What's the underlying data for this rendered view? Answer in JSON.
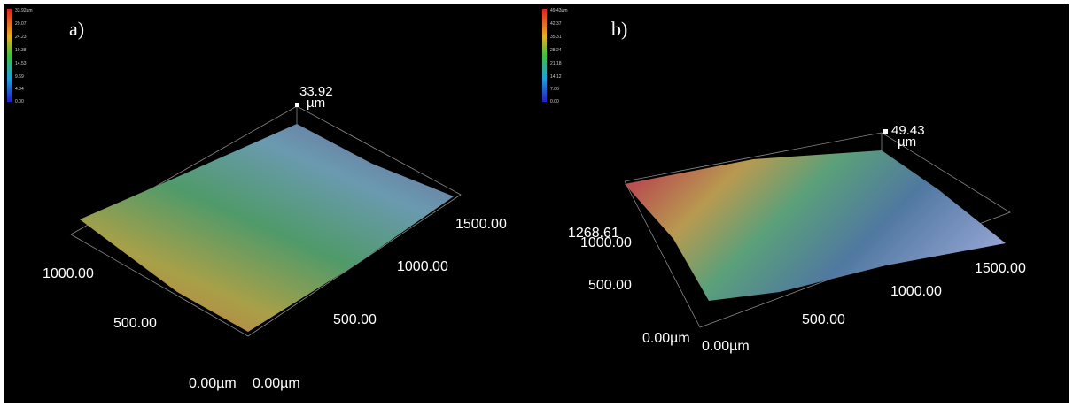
{
  "panels": [
    {
      "label": "a)",
      "colorbar": [
        "33.92µm",
        "29.07",
        "24.23",
        "19.38",
        "14.53",
        "9.69",
        "4.84",
        "0.00"
      ],
      "z_max": "33.92",
      "z_unit": "µm",
      "axis_labels": [
        "1500.00",
        "1000.00",
        "500.00",
        "0.00µm",
        "1000.00",
        "500.00",
        "0.00µm"
      ]
    },
    {
      "label": "b)",
      "colorbar": [
        "49.43µm",
        "42.37",
        "35.31",
        "28.24",
        "21.18",
        "14.12",
        "7.06",
        "0.00"
      ],
      "z_max": "49.43",
      "z_unit": "µm",
      "axis_labels": [
        "1268.61",
        "1000.00",
        "500.00",
        "0.00µm",
        "0.00µm",
        "500.00",
        "1000.00",
        "1500.00"
      ]
    }
  ]
}
